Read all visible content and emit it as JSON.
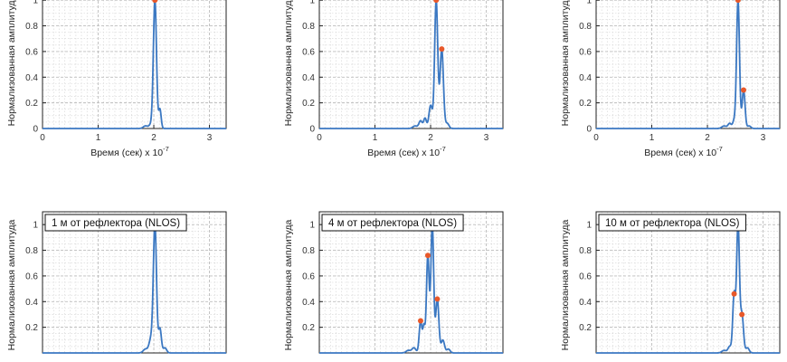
{
  "theme": {
    "line_color": "#3b78c2",
    "marker_color": "#e8582a",
    "minor_grid": "#d4d4d4",
    "major_grid": "#bdbdbd",
    "axis_color": "#222222"
  },
  "chart_data": [
    {
      "type": "line",
      "legend": "",
      "xlabel": "Время (сек) x 10",
      "xlabel_exp": "-7",
      "ylabel": "Нормализованная амплитуда",
      "xlim": [
        0,
        3.3
      ],
      "ylim": [
        0,
        1.1
      ],
      "xticks": [
        "0",
        "1",
        "2",
        "3"
      ],
      "yticks": [
        "0",
        "0.2",
        "0.4",
        "0.6",
        "0.8",
        "1"
      ],
      "grid": true,
      "peaks": [
        [
          1.85,
          0.02,
          0.04
        ],
        [
          1.95,
          0.03,
          0.035
        ],
        [
          2.02,
          1.0,
          0.028
        ],
        [
          2.11,
          0.15,
          0.022
        ]
      ],
      "markers": [
        [
          2.02,
          1.0
        ]
      ]
    },
    {
      "type": "line",
      "legend": "",
      "xlabel": "Время (сек) x 10",
      "xlabel_exp": "-7",
      "ylabel": "Нормализованная амплитуда",
      "xlim": [
        0,
        3.3
      ],
      "ylim": [
        0,
        1.1
      ],
      "xticks": [
        "0",
        "1",
        "2",
        "3"
      ],
      "yticks": [
        "0",
        "0.2",
        "0.4",
        "0.6",
        "0.8",
        "1"
      ],
      "grid": true,
      "peaks": [
        [
          1.72,
          0.02,
          0.04
        ],
        [
          1.82,
          0.06,
          0.03
        ],
        [
          1.9,
          0.08,
          0.025
        ],
        [
          2.0,
          0.18,
          0.03
        ],
        [
          2.1,
          1.0,
          0.028
        ],
        [
          2.2,
          0.62,
          0.03
        ],
        [
          2.3,
          0.04,
          0.03
        ]
      ],
      "markers": [
        [
          2.1,
          1.0
        ],
        [
          2.2,
          0.62
        ]
      ]
    },
    {
      "type": "line",
      "legend": "",
      "xlabel": "Время (сек) x 10",
      "xlabel_exp": "-7",
      "ylabel": "Нормализованная амплитуда",
      "xlim": [
        0,
        3.3
      ],
      "ylim": [
        0,
        1.1
      ],
      "xticks": [
        "0",
        "1",
        "2",
        "3"
      ],
      "yticks": [
        "0",
        "0.2",
        "0.4",
        "0.6",
        "0.8",
        "1"
      ],
      "grid": true,
      "peaks": [
        [
          2.3,
          0.02,
          0.04
        ],
        [
          2.4,
          0.04,
          0.03
        ],
        [
          2.48,
          0.06,
          0.025
        ],
        [
          2.55,
          1.0,
          0.026
        ],
        [
          2.65,
          0.3,
          0.026
        ],
        [
          2.75,
          0.02,
          0.03
        ]
      ],
      "markers": [
        [
          2.55,
          1.0
        ],
        [
          2.65,
          0.3
        ]
      ]
    },
    {
      "type": "line",
      "legend": "1 м от рефлектора (NLOS)",
      "xlabel": "",
      "xlabel_exp": "",
      "ylabel": "Нормализованная амплитуда",
      "xlim": [
        0,
        3.3
      ],
      "ylim": [
        0,
        1.1
      ],
      "xticks": [],
      "yticks": [
        "0.2",
        "0.4",
        "0.6",
        "0.8",
        "1"
      ],
      "grid": true,
      "peaks": [
        [
          1.85,
          0.03,
          0.04
        ],
        [
          1.95,
          0.11,
          0.035
        ],
        [
          2.02,
          1.0,
          0.028
        ],
        [
          2.11,
          0.19,
          0.026
        ],
        [
          2.2,
          0.04,
          0.03
        ]
      ],
      "markers": [
        [
          2.02,
          1.0
        ]
      ]
    },
    {
      "type": "line",
      "legend": "4 м от рефлектора (NLOS)",
      "xlabel": "",
      "xlabel_exp": "",
      "ylabel": "Нормализованная амплитуда",
      "xlim": [
        0,
        3.3
      ],
      "ylim": [
        0,
        1.1
      ],
      "xticks": [],
      "yticks": [
        "0.2",
        "0.4",
        "0.6",
        "0.8",
        "1"
      ],
      "grid": true,
      "peaks": [
        [
          1.6,
          0.02,
          0.04
        ],
        [
          1.7,
          0.04,
          0.035
        ],
        [
          1.82,
          0.25,
          0.025
        ],
        [
          1.88,
          0.2,
          0.02
        ],
        [
          1.95,
          0.76,
          0.025
        ],
        [
          2.03,
          1.0,
          0.025
        ],
        [
          2.12,
          0.42,
          0.028
        ],
        [
          2.22,
          0.1,
          0.03
        ],
        [
          2.32,
          0.03,
          0.03
        ]
      ],
      "markers": [
        [
          1.82,
          0.25
        ],
        [
          1.95,
          0.76
        ],
        [
          2.03,
          1.0
        ],
        [
          2.12,
          0.42
        ]
      ]
    },
    {
      "type": "line",
      "legend": "10 м от рефлектора (NLOS)",
      "xlabel": "",
      "xlabel_exp": "",
      "ylabel": "Нормализованная амплитуда",
      "xlim": [
        0,
        3.3
      ],
      "ylim": [
        0,
        1.1
      ],
      "xticks": [],
      "yticks": [
        "0.2",
        "0.4",
        "0.6",
        "0.8",
        "1"
      ],
      "grid": true,
      "peaks": [
        [
          2.3,
          0.02,
          0.04
        ],
        [
          2.4,
          0.05,
          0.03
        ],
        [
          2.48,
          0.46,
          0.025
        ],
        [
          2.55,
          1.0,
          0.025
        ],
        [
          2.62,
          0.3,
          0.028
        ],
        [
          2.72,
          0.04,
          0.03
        ]
      ],
      "markers": [
        [
          2.48,
          0.46
        ],
        [
          2.55,
          1.0
        ],
        [
          2.62,
          0.3
        ]
      ]
    }
  ]
}
